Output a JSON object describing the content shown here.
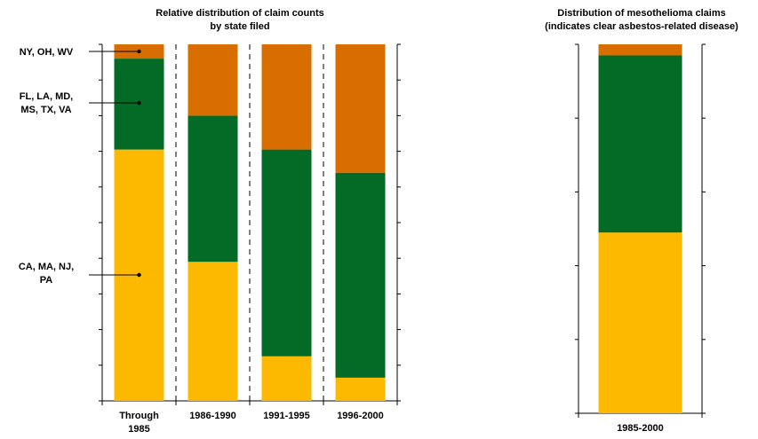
{
  "colors": {
    "ca_ma_nj_pa": "#FDB800",
    "fl_la_md_ms_tx_va": "#036B26",
    "ny_oh_wv": "#D96E00"
  },
  "chart_data": [
    {
      "type": "bar",
      "stacked": true,
      "title": "Relative distribution of claim counts\nby state filed",
      "xlabel": "",
      "ylabel": "",
      "ylim": [
        0,
        100
      ],
      "grid": false,
      "categories": [
        "Through\n1985",
        "1986-1990",
        "1991-1995",
        "1996-2000"
      ],
      "series": [
        {
          "name": "CA, MA, NJ,\nPA",
          "values": [
            70.5,
            39,
            12.5,
            6.5
          ]
        },
        {
          "name": "FL, LA, MD,\nMS, TX, VA",
          "values": [
            25.5,
            41,
            58,
            57.5
          ]
        },
        {
          "name": "NY, OH, WV",
          "values": [
            4,
            20,
            29.5,
            36
          ]
        }
      ]
    },
    {
      "type": "bar",
      "stacked": true,
      "title": "Distribution of mesothelioma claims\n(indicates clear asbestos-related disease)",
      "xlabel": "",
      "ylabel": "",
      "ylim": [
        0,
        100
      ],
      "grid": false,
      "categories": [
        "1985-2000"
      ],
      "series": [
        {
          "name": "",
          "values": [
            49
          ]
        },
        {
          "name": "",
          "values": [
            48
          ]
        },
        {
          "name": "",
          "values": [
            3
          ]
        }
      ]
    }
  ]
}
